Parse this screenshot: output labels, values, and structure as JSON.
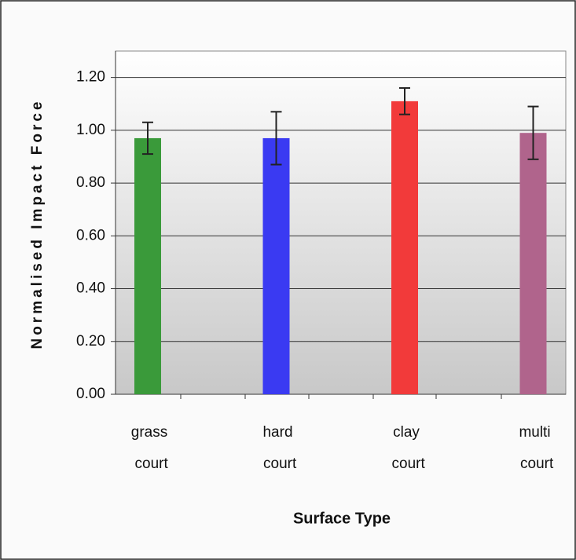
{
  "chart_data": {
    "type": "bar",
    "xlabel": "Surface Type",
    "ylabel": "Normalised Impact Force",
    "categories": [
      "grass court",
      "hard court",
      "clay court",
      "multi court"
    ],
    "values": [
      0.97,
      0.97,
      1.11,
      0.99
    ],
    "errors": [
      0.06,
      0.1,
      0.05,
      0.1
    ],
    "colors": [
      "#3a9a3a",
      "#3a3af2",
      "#f23a3a",
      "#b0648c"
    ],
    "ylim": [
      0,
      1.3
    ],
    "yticks": [
      {
        "value": 0,
        "label": "0.00"
      },
      {
        "value": 0.2,
        "label": "0.20"
      },
      {
        "value": 0.4,
        "label": "0.40"
      },
      {
        "value": 0.6,
        "label": "0.60"
      },
      {
        "value": 0.8,
        "label": "0.80"
      },
      {
        "value": 1.0,
        "label": "1.00"
      },
      {
        "value": 1.2,
        "label": "1.20"
      }
    ],
    "grid": true
  }
}
